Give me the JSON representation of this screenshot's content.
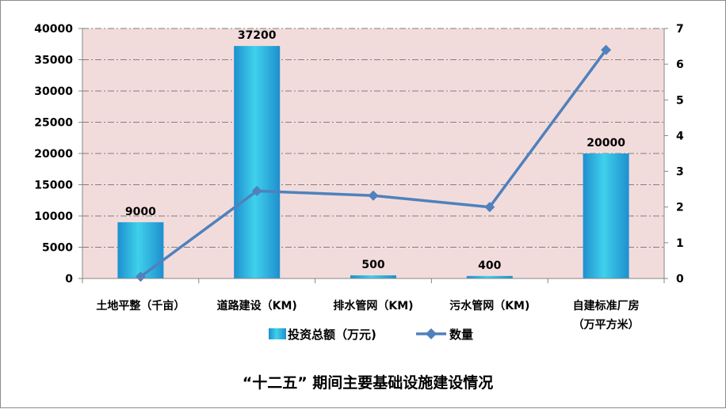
{
  "chart_data": {
    "type": "bar",
    "categories": [
      [
        "土地平整（千亩）"
      ],
      [
        "道路建设（KM)"
      ],
      [
        "排水管网（KM)"
      ],
      [
        "污水管网（KM)"
      ],
      [
        "自建标准厂房",
        "（万平方米）"
      ]
    ],
    "series": [
      {
        "name": "投资总额（万元)",
        "type": "bar",
        "axis": "left",
        "values": [
          9000,
          37200,
          500,
          400,
          20000
        ],
        "labels": [
          "9000",
          "37200",
          "500",
          "400",
          "20000"
        ]
      },
      {
        "name": "数量",
        "type": "line",
        "axis": "right",
        "values": [
          0.05,
          2.45,
          2.32,
          2.0,
          6.4
        ]
      }
    ],
    "y_left": {
      "min": 0,
      "max": 40000,
      "ticks": [
        0,
        5000,
        10000,
        15000,
        20000,
        25000,
        30000,
        35000,
        40000
      ]
    },
    "y_right": {
      "min": 0,
      "max": 7,
      "ticks": [
        0,
        1,
        2,
        3,
        4,
        5,
        6,
        7
      ]
    },
    "title": "“十二五” 期间主要基础设施建设情况",
    "grid": true,
    "legend_position": "bottom",
    "colors": {
      "plot_bg": "#f2dcdb",
      "bar": "#1f8fcf",
      "bar_light": "#3fd1ec",
      "line": "#4f81bd",
      "grid": "#7f7f7f",
      "axis": "#868686"
    }
  }
}
